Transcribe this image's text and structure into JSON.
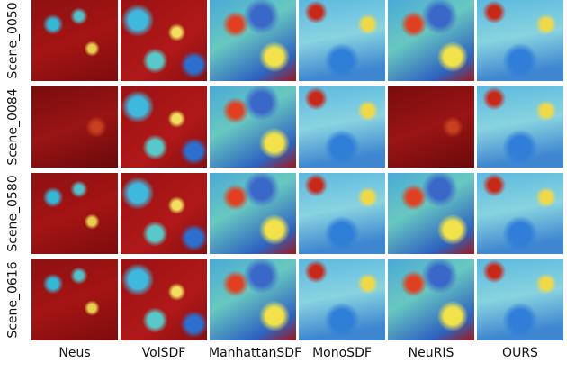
{
  "row_labels": [
    "Scene_0050",
    "Scene_0084",
    "Scene_0580",
    "Scene_0616"
  ],
  "column_labels": [
    "Neus",
    "VolSDF",
    "ManhattanSDF",
    "MonoSDF",
    "NeuRIS",
    "OURS"
  ]
}
